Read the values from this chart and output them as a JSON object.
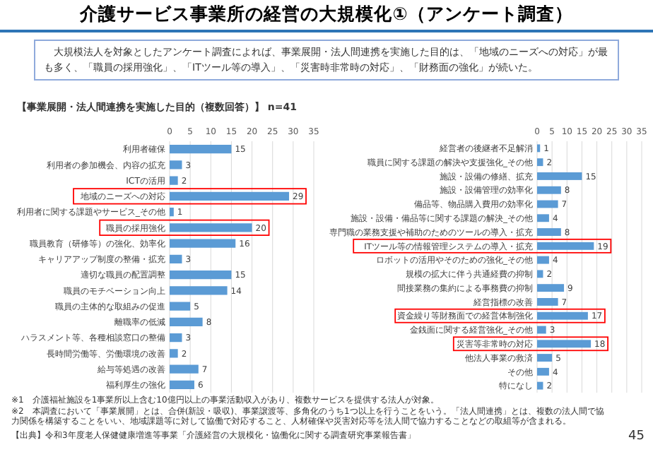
{
  "chart_data": [
    {
      "type": "bar",
      "orientation": "horizontal",
      "title": "介護サービス事業所の経営の大規模化①（アンケート調査）",
      "subtitle": "大規模法人を対象としたアンケート調査によれば、事業展開・法人間連携を実施した目的は、「地域のニーズへの対応」が最も多く、「職員の採用強化」、「ITツール等の導入」、「災害時非常時の対応」、「財務面の強化」が続いた。",
      "annotations": [
        "【事業展開・法人間連携を実施した目的（複数回答）】 n=41",
        "※1　介護福祉施設を1事業所以上含む10億円以上の事業活動収入があり、複数サービスを提供する法人が対象。",
        "※2　本調査において「事業展開」とは、合併(新設・吸収)、事業譲渡等、多角化のうち1つ以上を行うことをいう。「法人間連携」とは、複数の法人間で協力関係を構築することをいい、地域課題等に対して協働で対応すること、人材確保や災害対応等を法人間で協力することなどの取組等が含まれる。",
        "【出典】令和3年度老人保健健康増進等事業「介護経営の大規模化・協働化に関する調査研究事業報告書」",
        "45"
      ],
      "categories": [
        "利用者確保",
        "利用者の参加機会、内容の拡充",
        "ICTの活用",
        "地域のニーズへの対応",
        "利用者に関する課題やサービス_その他",
        "職員の採用強化",
        "職員教育（研修等）の強化、効率化",
        "キャリアアップ制度の整備・拡充",
        "適切な職員の配置調整",
        "職員のモチベーション向上",
        "職員の主体的な取組みの促進",
        "離職率の低減",
        "ハラスメント等、各種相談窓口の整備",
        "長時間労働等、労働環境の改善",
        "給与等処遇の改善",
        "福利厚生の強化"
      ],
      "values": [
        15,
        3,
        2,
        29,
        1,
        20,
        16,
        3,
        15,
        14,
        5,
        8,
        3,
        2,
        7,
        6
      ],
      "color": "#5b9bd5",
      "xlim": [
        0,
        35
      ],
      "xticks": [
        0,
        5,
        10,
        15,
        20,
        25,
        30,
        35
      ],
      "grid": "x",
      "data_labels": true
    },
    {
      "type": "bar",
      "orientation": "horizontal",
      "categories": [
        "経営者の後継者不足解消",
        "職員に関する課題の解決や支援強化_その他",
        "施設・設備の修繕、拡充",
        "施設・設備管理の効率化",
        "備品等、物品購入費用の効率化",
        "施設・設備・備品等に関する課題の解決_その他",
        "専門職の業務支援や補助のためのツールの導入・拡充",
        "ITツール等の情報管理システムの導入・拡充",
        "ロボットの活用やそのための強化_その他",
        "規模の拡大に伴う共通経費の抑制",
        "間接業務の集約による事務費の抑制",
        "経営指標の改善",
        "資金繰り等財務面での経営体制強化",
        "金銭面に関する経営強化_その他",
        "災害等非常時の対応",
        "他法人事業の救済",
        "その他",
        "特になし"
      ],
      "values": [
        1,
        2,
        15,
        8,
        7,
        4,
        8,
        19,
        4,
        2,
        9,
        7,
        17,
        3,
        18,
        5,
        4,
        2
      ],
      "color": "#5b9bd5",
      "xlim": [
        0,
        35
      ],
      "xticks": [
        0,
        5,
        10,
        15,
        20,
        25,
        30,
        35
      ],
      "grid": "x",
      "data_labels": true
    }
  ]
}
